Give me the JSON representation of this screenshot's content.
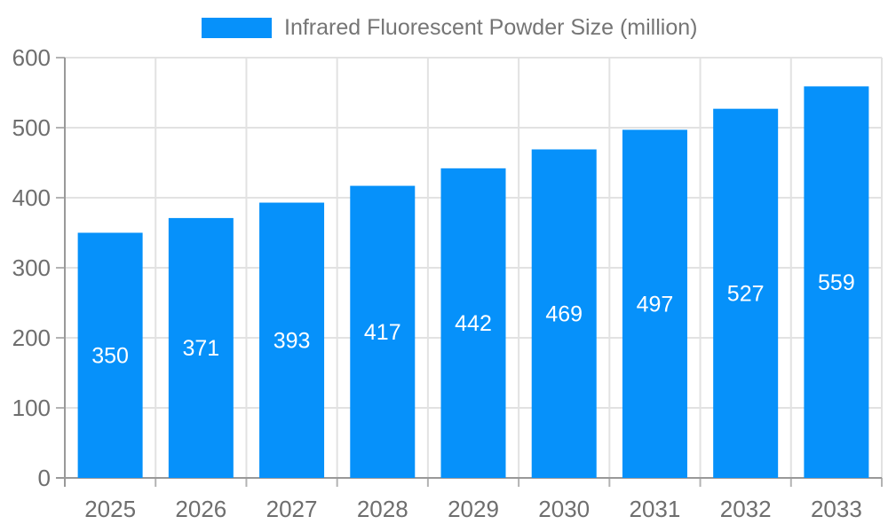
{
  "chart_data": {
    "type": "bar",
    "title": "Infrared Fluorescent Powder Size (million)",
    "categories": [
      "2025",
      "2026",
      "2027",
      "2028",
      "2029",
      "2030",
      "2031",
      "2032",
      "2033"
    ],
    "values": [
      350,
      371,
      393,
      417,
      442,
      469,
      497,
      527,
      559
    ],
    "xlabel": "",
    "ylabel": "",
    "ylim": [
      0,
      600
    ],
    "yticks": [
      0,
      100,
      200,
      300,
      400,
      500,
      600
    ],
    "grid": true,
    "legend_position": "top-center",
    "value_label_position": "inside-center",
    "colors": {
      "bar": "#0691fa",
      "value_label": "#ffffff",
      "axis_line": "#999999",
      "gridline": "#e2e2e2",
      "tick_mark": "#b3b3b3",
      "tick_label": "#6e6e6e",
      "legend_text": "#757575",
      "background": "#ffffff"
    }
  }
}
